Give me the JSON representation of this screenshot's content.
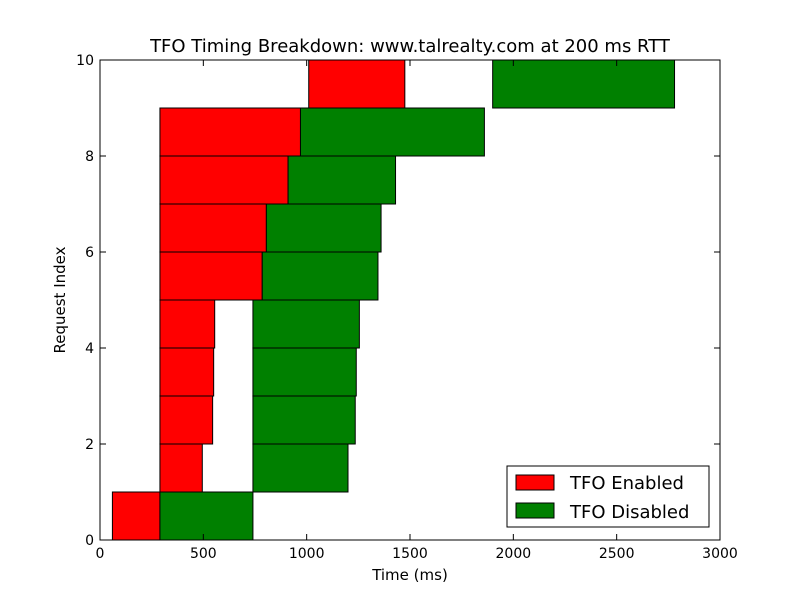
{
  "chart_data": {
    "type": "bar",
    "orientation": "horizontal-floating",
    "title": "TFO Timing Breakdown: www.talrealty.com at 200 ms RTT",
    "xlabel": "Time (ms)",
    "ylabel": "Request Index",
    "xlim": [
      0,
      3000
    ],
    "ylim": [
      0,
      10
    ],
    "x_ticks": [
      "0",
      "500",
      "1000",
      "1500",
      "2000",
      "2500",
      "3000"
    ],
    "y_ticks": [
      "0",
      "2",
      "4",
      "6",
      "8",
      "10"
    ],
    "grid": false,
    "legend_position": "lower-right",
    "colors": {
      "enabled": "#ff0000",
      "disabled": "#008000",
      "edge": "#000000"
    },
    "series": [
      {
        "name": "TFO Enabled",
        "bars": [
          {
            "index": 0,
            "start": 60,
            "end": 290
          },
          {
            "index": 1,
            "start": 290,
            "end": 495
          },
          {
            "index": 2,
            "start": 290,
            "end": 545
          },
          {
            "index": 3,
            "start": 290,
            "end": 550
          },
          {
            "index": 4,
            "start": 290,
            "end": 555
          },
          {
            "index": 5,
            "start": 290,
            "end": 785
          },
          {
            "index": 6,
            "start": 290,
            "end": 805
          },
          {
            "index": 7,
            "start": 290,
            "end": 910
          },
          {
            "index": 8,
            "start": 290,
            "end": 970
          },
          {
            "index": 9,
            "start": 1010,
            "end": 1475
          }
        ]
      },
      {
        "name": "TFO Disabled",
        "bars": [
          {
            "index": 0,
            "start": 290,
            "end": 740
          },
          {
            "index": 1,
            "start": 740,
            "end": 1200
          },
          {
            "index": 2,
            "start": 740,
            "end": 1235
          },
          {
            "index": 3,
            "start": 740,
            "end": 1240
          },
          {
            "index": 4,
            "start": 740,
            "end": 1255
          },
          {
            "index": 5,
            "start": 785,
            "end": 1345
          },
          {
            "index": 6,
            "start": 805,
            "end": 1360
          },
          {
            "index": 7,
            "start": 910,
            "end": 1430
          },
          {
            "index": 8,
            "start": 970,
            "end": 1860
          },
          {
            "index": 9,
            "start": 1900,
            "end": 2780
          }
        ]
      }
    ]
  }
}
